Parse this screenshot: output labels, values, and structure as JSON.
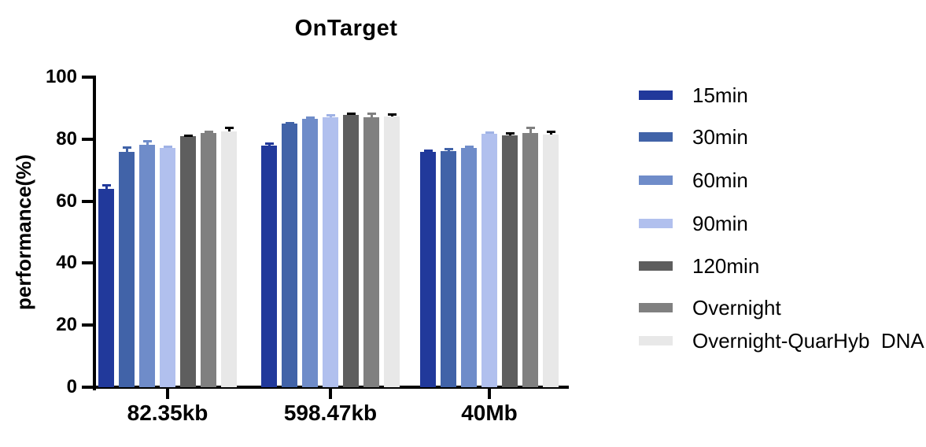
{
  "title": "OnTarget",
  "axes": {
    "ylabel": "performance(%)",
    "yticks": [
      0,
      20,
      40,
      60,
      80,
      100
    ],
    "categories": [
      "82.35kb",
      "598.47kb",
      "40Mb"
    ]
  },
  "legend": {
    "position": "right",
    "items": [
      "15min",
      "30min",
      "60min",
      "90min",
      "120min",
      "Overnight",
      "Overnight-QuarHyb  DNA"
    ]
  },
  "chart_data": {
    "type": "bar",
    "title": "OnTarget",
    "xlabel": "",
    "ylabel": "performance(%)",
    "ylim": [
      0,
      100
    ],
    "yticks": [
      0,
      20,
      40,
      60,
      80,
      100
    ],
    "grid": false,
    "legend_position": "right",
    "error_bars": "upper-only with caps",
    "categories": [
      "82.35kb",
      "598.47kb",
      "40Mb"
    ],
    "series": [
      {
        "name": "15min",
        "color": "#21399B",
        "error_color": "#21399B",
        "values": [
          64.0,
          78.0,
          75.8
        ],
        "errors": [
          1.3,
          0.6,
          0.5
        ]
      },
      {
        "name": "30min",
        "color": "#4163A8",
        "error_color": "#4163A8",
        "values": [
          75.9,
          84.9,
          76.2
        ],
        "errors": [
          1.5,
          0.5,
          0.6
        ]
      },
      {
        "name": "60min",
        "color": "#6F8CC9",
        "error_color": "#6F8CC9",
        "values": [
          78.2,
          86.5,
          77.1
        ],
        "errors": [
          1.2,
          0.5,
          0.6
        ]
      },
      {
        "name": "90min",
        "color": "#B1C0EE",
        "error_color": "#9FB2E5",
        "values": [
          77.2,
          87.1,
          81.8
        ],
        "errors": [
          0.5,
          0.8,
          0.4
        ]
      },
      {
        "name": "120min",
        "color": "#5E5E5E",
        "error_color": "#000000",
        "values": [
          81.0,
          87.7,
          81.3
        ],
        "errors": [
          0.3,
          0.5,
          0.6
        ]
      },
      {
        "name": "Overnight",
        "color": "#808080",
        "error_color": "#808080",
        "values": [
          82.1,
          87.1,
          82.1
        ],
        "errors": [
          0.5,
          1.3,
          1.6
        ]
      },
      {
        "name": "Overnight-QuarHyb  DNA",
        "color": "#E8E8E8",
        "error_color": "#000000",
        "values": [
          82.4,
          87.3,
          81.5
        ],
        "errors": [
          1.3,
          0.8,
          0.9
        ]
      }
    ]
  }
}
